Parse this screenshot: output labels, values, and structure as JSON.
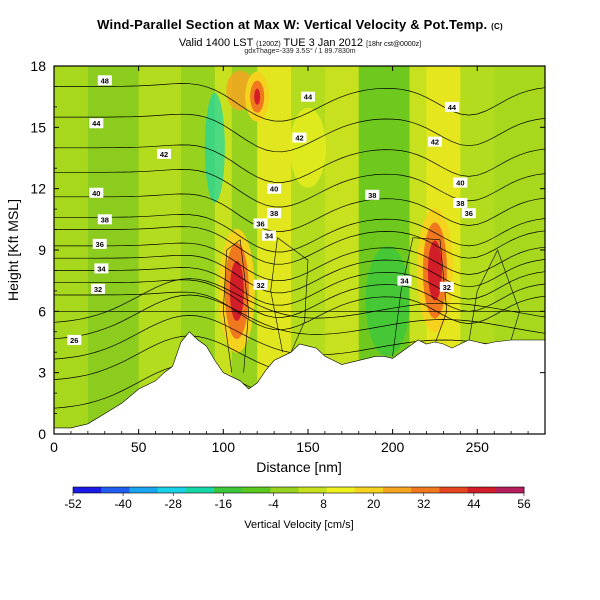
{
  "chart_data": {
    "type": "heatmap",
    "title": "Wind-Parallel Section at Max W: Vertical Velocity & Pot.Temp.",
    "title_suffix": "(C)",
    "subtitle": "Valid 1400 LST",
    "subtitle_paren": "(1200Z)",
    "subtitle_date": "TUE 3 Jan 2012",
    "subtitle_tail": "[18hr cst@0000z]",
    "small_text": "gdxThage=-339 3.5S° / 1 89.7830m",
    "xlabel": "Distance [nm]",
    "ylabel": "Height [Kft MSL]",
    "x_ticks": [
      "0",
      "50",
      "100",
      "150",
      "200",
      "250"
    ],
    "x_tick_values": [
      0,
      50,
      100,
      150,
      200,
      250
    ],
    "y_ticks": [
      "0",
      "3",
      "6",
      "9",
      "12",
      "15",
      "18"
    ],
    "y_tick_values": [
      0,
      3,
      6,
      9,
      12,
      15,
      18
    ],
    "xlim": [
      0,
      290
    ],
    "ylim": [
      0,
      18
    ],
    "colorbar": {
      "label": "Vertical Velocity [cm/s]",
      "ticks": [
        "-52",
        "-40",
        "-28",
        "-16",
        "-4",
        "8",
        "20",
        "32",
        "44",
        "56"
      ],
      "tick_values": [
        -52,
        -40,
        -28,
        -16,
        -4,
        8,
        20,
        32,
        44,
        56
      ],
      "colors": [
        "#1a1ae6",
        "#1f5ef0",
        "#19a5f0",
        "#19d2e6",
        "#19d6a8",
        "#3cc83c",
        "#5ac81e",
        "#96d21e",
        "#c8e11e",
        "#f0f01e",
        "#f5d21e",
        "#f5a51e",
        "#f0781e",
        "#e6461e",
        "#d21e28",
        "#b41e5a"
      ]
    },
    "contour_labels": [
      "48",
      "44",
      "44",
      "44",
      "42",
      "42",
      "42",
      "40",
      "40",
      "40",
      "38",
      "38",
      "38",
      "38",
      "36",
      "36",
      "36",
      "34",
      "34",
      "34",
      "32",
      "32",
      "32",
      "26"
    ],
    "isentrope_values": [
      26,
      32,
      34,
      36,
      38,
      40,
      42,
      44,
      48
    ],
    "vertical_velocity_max_regions": [
      {
        "x_nm": 108,
        "height_kft": 7,
        "value": 44
      },
      {
        "x_nm": 225,
        "height_kft": 8,
        "value": 50
      },
      {
        "x_nm": 120,
        "height_kft": 16.5,
        "value": 28
      }
    ],
    "terrain_kft": [
      [
        0,
        0.3
      ],
      [
        10,
        0.3
      ],
      [
        20,
        0.5
      ],
      [
        30,
        1.0
      ],
      [
        40,
        1.5
      ],
      [
        50,
        2.2
      ],
      [
        60,
        2.6
      ],
      [
        65,
        3.0
      ],
      [
        70,
        3.3
      ],
      [
        75,
        4.5
      ],
      [
        80,
        5.0
      ],
      [
        85,
        4.6
      ],
      [
        90,
        4.3
      ],
      [
        95,
        3.6
      ],
      [
        100,
        3.0
      ],
      [
        105,
        2.8
      ],
      [
        110,
        2.6
      ],
      [
        115,
        2.2
      ],
      [
        120,
        2.5
      ],
      [
        125,
        3.1
      ],
      [
        130,
        3.6
      ],
      [
        135,
        3.8
      ],
      [
        140,
        4.0
      ],
      [
        145,
        4.4
      ],
      [
        150,
        4.3
      ],
      [
        155,
        4.2
      ],
      [
        160,
        3.8
      ],
      [
        165,
        3.6
      ],
      [
        170,
        3.4
      ],
      [
        175,
        3.5
      ],
      [
        180,
        3.6
      ],
      [
        185,
        3.7
      ],
      [
        190,
        3.8
      ],
      [
        195,
        3.8
      ],
      [
        200,
        3.7
      ],
      [
        205,
        4.0
      ],
      [
        210,
        4.3
      ],
      [
        215,
        4.6
      ],
      [
        220,
        4.4
      ],
      [
        225,
        4.5
      ],
      [
        230,
        4.4
      ],
      [
        235,
        4.2
      ],
      [
        240,
        4.4
      ],
      [
        245,
        4.6
      ],
      [
        250,
        4.5
      ],
      [
        255,
        4.4
      ],
      [
        260,
        4.5
      ],
      [
        270,
        4.6
      ],
      [
        280,
        4.6
      ],
      [
        290,
        4.6
      ]
    ]
  }
}
